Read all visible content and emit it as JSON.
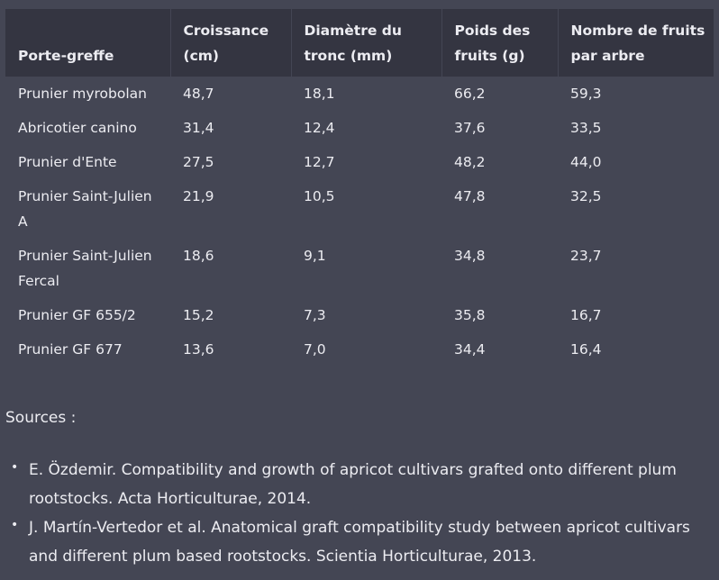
{
  "table": {
    "headers": [
      "Porte-greffe",
      "Croissance (cm)",
      "Diamètre du tronc (mm)",
      "Poids des fruits (g)",
      "Nombre de fruits par arbre"
    ],
    "rows": [
      [
        "Prunier myrobolan",
        "48,7",
        "18,1",
        "66,2",
        "59,3"
      ],
      [
        "Abricotier canino",
        "31,4",
        "12,4",
        "37,6",
        "33,5"
      ],
      [
        "Prunier d'Ente",
        "27,5",
        "12,7",
        "48,2",
        "44,0"
      ],
      [
        "Prunier Saint-Julien A",
        "21,9",
        "10,5",
        "47,8",
        "32,5"
      ],
      [
        "Prunier Saint-Julien Fercal",
        "18,6",
        "9,1",
        "34,8",
        "23,7"
      ],
      [
        "Prunier GF 655/2",
        "15,2",
        "7,3",
        "35,8",
        "16,7"
      ],
      [
        "Prunier GF 677",
        "13,6",
        "7,0",
        "34,4",
        "16,4"
      ]
    ]
  },
  "sources": {
    "heading": "Sources :",
    "items": [
      "E. Özdemir. Compatibility and growth of apricot cultivars grafted onto different plum rootstocks. Acta Horticulturae, 2014.",
      "J. Martín-Vertedor et al. Anatomical graft compatibility study between apricot cultivars and different plum based rootstocks. Scientia Horticulturae, 2013."
    ],
    "bullet": "•"
  }
}
